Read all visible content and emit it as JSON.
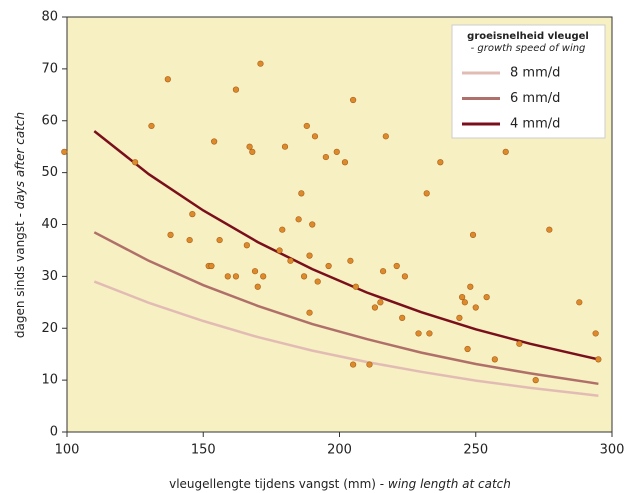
{
  "chart_data": {
    "type": "scatter",
    "xlabel": {
      "text": "vleugellengte tijdens vangst (mm) - ",
      "italic": "wing length at catch"
    },
    "ylabel": {
      "text": "dagen sinds vangst - ",
      "italic": "days after catch"
    },
    "xlim": [
      100,
      300
    ],
    "xticks": [
      100,
      150,
      200,
      250,
      300
    ],
    "ylim": [
      0,
      80
    ],
    "yticks": [
      0,
      10,
      20,
      30,
      40,
      50,
      60,
      70,
      80
    ],
    "background": "#f7f0c2",
    "legend": {
      "position": "upper right",
      "title": "groeisnelheid vleugel",
      "subtitle": "- growth speed of wing"
    },
    "points": {
      "color": "#dc8a2c",
      "x": [
        99,
        125,
        131,
        137,
        138,
        145,
        146,
        152,
        153,
        154,
        156,
        159,
        162,
        162,
        166,
        167,
        168,
        169,
        170,
        171,
        172,
        178,
        179,
        180,
        182,
        185,
        186,
        187,
        188,
        189,
        189,
        190,
        191,
        192,
        195,
        196,
        199,
        202,
        204,
        205,
        205,
        206,
        211,
        213,
        215,
        216,
        217,
        221,
        223,
        224,
        229,
        232,
        233,
        237,
        244,
        245,
        246,
        247,
        248,
        249,
        250,
        254,
        257,
        261,
        266,
        272,
        277,
        288,
        294,
        295
      ],
      "y": [
        54,
        52,
        59,
        68,
        38,
        37,
        42,
        32,
        32,
        56,
        37,
        30,
        66,
        30,
        36,
        55,
        54,
        31,
        28,
        71,
        30,
        35,
        39,
        55,
        33,
        41,
        46,
        30,
        59,
        23,
        34,
        40,
        57,
        29,
        53,
        32,
        54,
        52,
        33,
        13,
        64,
        28,
        13,
        24,
        25,
        31,
        57,
        32,
        22,
        30,
        19,
        46,
        19,
        52,
        22,
        26,
        25,
        16,
        28,
        38,
        24,
        26,
        14,
        54,
        17,
        10,
        39,
        25,
        19,
        14
      ]
    },
    "series": [
      {
        "name": "8 mm/d",
        "color": "#e2bcb4",
        "x": [
          110,
          130,
          150,
          170,
          190,
          210,
          230,
          250,
          270,
          290,
          295
        ],
        "values": [
          29,
          24.9,
          21.4,
          18.3,
          15.7,
          13.5,
          11.6,
          9.9,
          8.5,
          7.3,
          7.0
        ]
      },
      {
        "name": "6 mm/d",
        "color": "#b0706a",
        "x": [
          110,
          130,
          150,
          170,
          190,
          210,
          230,
          250,
          270,
          290,
          295
        ],
        "values": [
          38.5,
          33.0,
          28.3,
          24.3,
          20.8,
          17.9,
          15.3,
          13.1,
          11.3,
          9.7,
          9.3
        ]
      },
      {
        "name": "4 mm/d",
        "color": "#7a0f1c",
        "x": [
          110,
          130,
          150,
          170,
          190,
          210,
          230,
          250,
          270,
          290,
          295
        ],
        "values": [
          58,
          49.7,
          42.7,
          36.6,
          31.4,
          26.9,
          23.1,
          19.8,
          17.0,
          14.6,
          14.0
        ]
      }
    ]
  }
}
